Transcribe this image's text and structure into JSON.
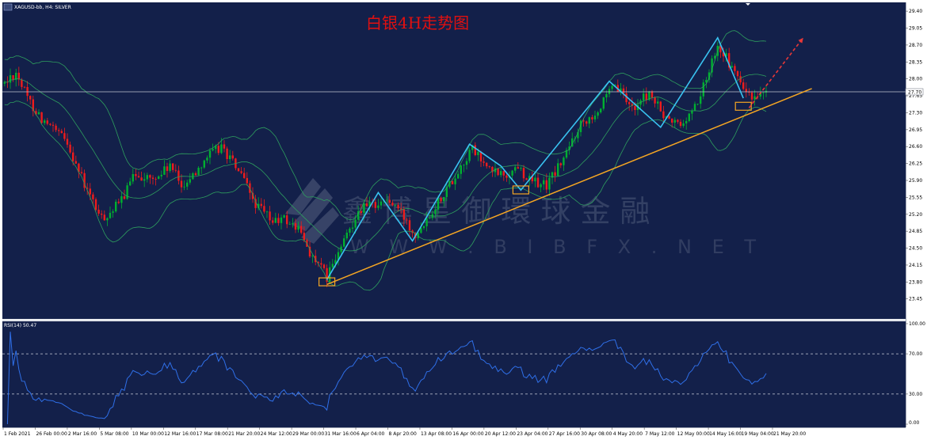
{
  "window": {
    "symbol_label": "XAGUSD-bb, H4: SILVER",
    "rsi_label": "RSI(14) 50.47"
  },
  "title": "白银4H走势图",
  "watermark": {
    "cn": "鑫 博 星 御 環 球 金 融",
    "en": "W W W . B I B F X . N E T"
  },
  "colors": {
    "background": "#13204a",
    "panel_background": "#0f1c40",
    "bull": "#00b030",
    "bear": "#ee1c1c",
    "bollinger": "#2e9e5e",
    "trendline": "#f5a623",
    "wave": "#39c2f0",
    "forecast": "#e83838",
    "rsi_line": "#2f6fe8",
    "box": "#f5a623"
  },
  "chart_data": [
    {
      "type": "candlestick",
      "name": "price",
      "ylim": [
        23.2,
        29.5
      ],
      "y_ticks": [
        "29.40",
        "29.05",
        "28.70",
        "28.35",
        "28.00",
        "27.65",
        "27.30",
        "26.95",
        "26.60",
        "26.25",
        "25.90",
        "25.55",
        "25.20",
        "24.85",
        "24.50",
        "24.15",
        "23.80",
        "23.45"
      ],
      "current_price": "27.70",
      "x_labels": [
        "1 Feb 2021",
        "26 Feb 00:00",
        "2 Mar 16:00",
        "5 Mar 08:00",
        "10 Mar 00:00",
        "12 Mar 16:00",
        "17 Mar 08:00",
        "21 Mar 20:00",
        "24 Mar 12:00",
        "29 Mar 00:00",
        "31 Mar 16:00",
        "6 Apr 04:00",
        "8 Apr 20:00",
        "13 Apr 08:00",
        "16 Apr 00:00",
        "20 Apr 12:00",
        "23 Apr 04:00",
        "27 Apr 16:00",
        "30 Apr 08:00",
        "4 May 20:00",
        "7 May 12:00",
        "12 May 00:00",
        "14 May 16:00",
        "19 May 04:00",
        "21 May 20:00"
      ],
      "anchors": [
        [
          0,
          27.9
        ],
        [
          4,
          28.15
        ],
        [
          8,
          27.6
        ],
        [
          14,
          27.1
        ],
        [
          22,
          26.7
        ],
        [
          28,
          25.8
        ],
        [
          34,
          25.1
        ],
        [
          40,
          25.4
        ],
        [
          46,
          26.05
        ],
        [
          52,
          25.9
        ],
        [
          58,
          26.2
        ],
        [
          62,
          25.8
        ],
        [
          66,
          26.0
        ],
        [
          70,
          26.35
        ],
        [
          76,
          26.6
        ],
        [
          82,
          26.1
        ],
        [
          88,
          25.4
        ],
        [
          94,
          25.05
        ],
        [
          98,
          25.1
        ],
        [
          103,
          24.9
        ],
        [
          108,
          24.3
        ],
        [
          113,
          23.9
        ],
        [
          118,
          24.5
        ],
        [
          124,
          25.3
        ],
        [
          134,
          25.5
        ],
        [
          138,
          25.3
        ],
        [
          144,
          24.8
        ],
        [
          150,
          25.3
        ],
        [
          158,
          26.0
        ],
        [
          164,
          26.55
        ],
        [
          170,
          26.1
        ],
        [
          176,
          26.0
        ],
        [
          180,
          26.2
        ],
        [
          184,
          25.9
        ],
        [
          190,
          25.8
        ],
        [
          196,
          26.35
        ],
        [
          202,
          27.1
        ],
        [
          208,
          27.35
        ],
        [
          214,
          27.85
        ],
        [
          220,
          27.4
        ],
        [
          226,
          27.7
        ],
        [
          232,
          27.15
        ],
        [
          238,
          27.05
        ],
        [
          244,
          27.65
        ],
        [
          250,
          28.75
        ],
        [
          256,
          28.1
        ],
        [
          262,
          27.55
        ],
        [
          267,
          27.65
        ]
      ],
      "bollinger": {
        "upper_offset": 0.85,
        "lower_offset": 0.85,
        "period": 20
      }
    },
    {
      "type": "line",
      "name": "RSI(14)",
      "ylim": [
        0,
        100
      ],
      "y_ticks": [
        "100.00",
        "70.00",
        "30.00",
        "0.00"
      ],
      "levels": [
        70,
        30
      ],
      "last_value": 50.47
    }
  ],
  "annotations": {
    "waves": [
      [
        113,
        23.85
      ],
      [
        131,
        25.65
      ],
      [
        143,
        24.65
      ],
      [
        163,
        26.65
      ],
      [
        174,
        26.2
      ],
      [
        181,
        25.7
      ],
      [
        212,
        27.95
      ],
      [
        230,
        27.0
      ],
      [
        250,
        28.85
      ],
      [
        259,
        27.6
      ]
    ],
    "trendline": [
      [
        113,
        23.75
      ],
      [
        283,
        27.8
      ]
    ],
    "forecast_arrow": [
      [
        261,
        27.4
      ],
      [
        280,
        28.85
      ]
    ],
    "boxes": [
      [
        113,
        23.82
      ],
      [
        181,
        25.72
      ],
      [
        259,
        27.45
      ]
    ]
  }
}
